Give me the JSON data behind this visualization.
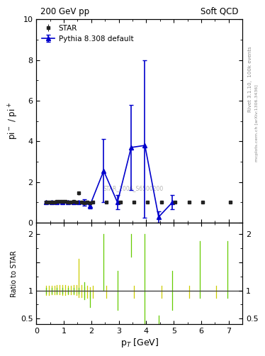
{
  "title_left": "200 GeV pp",
  "title_right": "Soft QCD",
  "ylabel_main": "pi$^-$ / pi$^+$",
  "ylabel_ratio": "Ratio to STAR",
  "xlabel": "p$_T$ [GeV]",
  "right_label_top": "Rivet 3.1.10,  100k events",
  "right_label_bot": "mcplots.cern.ch [arXiv:1306.3436]",
  "watermark": "STAR_2006_S6500200",
  "xlim": [
    0,
    7.5
  ],
  "ylim_main": [
    0,
    10
  ],
  "ylim_ratio": [
    0.4,
    2.2
  ],
  "star_x": [
    0.35,
    0.45,
    0.55,
    0.65,
    0.75,
    0.85,
    0.95,
    1.05,
    1.15,
    1.25,
    1.35,
    1.45,
    1.55,
    1.65,
    1.75,
    1.85,
    1.95,
    2.05,
    2.55,
    3.05,
    3.55,
    4.05,
    4.55,
    5.05,
    5.55,
    6.05,
    7.05
  ],
  "star_y": [
    1.01,
    1.01,
    1.02,
    1.02,
    1.04,
    1.05,
    1.03,
    1.03,
    1.02,
    1.02,
    1.03,
    1.02,
    1.45,
    1.0,
    0.97,
    1.0,
    0.97,
    1.0,
    1.0,
    1.0,
    1.0,
    1.02,
    1.0,
    1.0,
    1.0,
    1.0,
    1.0
  ],
  "star_yerr": [
    0.04,
    0.04,
    0.04,
    0.04,
    0.04,
    0.04,
    0.04,
    0.04,
    0.04,
    0.04,
    0.04,
    0.04,
    0.08,
    0.05,
    0.05,
    0.05,
    0.05,
    0.05,
    0.05,
    0.05,
    0.05,
    0.05,
    0.05,
    0.05,
    0.05,
    0.05,
    0.05
  ],
  "pythia_x": [
    0.35,
    0.55,
    0.75,
    0.95,
    1.15,
    1.35,
    1.55,
    1.75,
    1.95,
    2.45,
    2.95,
    3.45,
    3.95,
    4.45,
    4.95
  ],
  "pythia_y": [
    1.0,
    1.0,
    1.0,
    1.0,
    1.0,
    1.0,
    1.0,
    1.0,
    0.85,
    2.55,
    1.0,
    3.7,
    3.8,
    0.28,
    1.0
  ],
  "pythia_yerr_lo": [
    0.05,
    0.05,
    0.05,
    0.05,
    0.05,
    0.05,
    0.05,
    0.15,
    0.15,
    1.55,
    0.35,
    2.1,
    3.55,
    0.28,
    0.35
  ],
  "pythia_yerr_hi": [
    0.05,
    0.05,
    0.05,
    0.05,
    0.05,
    0.05,
    0.05,
    0.15,
    0.15,
    1.55,
    0.35,
    2.1,
    4.2,
    0.28,
    0.35
  ],
  "star_color": "#222222",
  "pythia_color": "#0000cc",
  "ratio_yellow_color": "#cccc00",
  "ratio_green_color": "#66cc00",
  "background_color": "#ffffff",
  "ratio_yellow_x": [
    0.35,
    0.45,
    0.55,
    0.65,
    0.75,
    0.85,
    0.95,
    1.05,
    1.15,
    1.25,
    1.35,
    1.45,
    1.55,
    1.65,
    1.75,
    1.85,
    1.95,
    2.05,
    2.55,
    3.55,
    4.55,
    5.55,
    6.55,
    7.55
  ],
  "ratio_yellow_lo": [
    0.92,
    0.92,
    0.93,
    0.93,
    0.93,
    0.93,
    0.92,
    0.92,
    0.93,
    0.93,
    0.93,
    0.92,
    0.88,
    0.88,
    0.88,
    0.87,
    0.87,
    0.87,
    0.87,
    0.87,
    0.87,
    0.87,
    0.87,
    0.87
  ],
  "ratio_yellow_hi": [
    1.08,
    1.08,
    1.08,
    1.08,
    1.1,
    1.1,
    1.09,
    1.09,
    1.08,
    1.08,
    1.09,
    1.09,
    1.56,
    1.1,
    1.06,
    1.08,
    1.06,
    1.08,
    1.08,
    1.08,
    1.08,
    1.08,
    1.08,
    1.08
  ],
  "ratio_green_x": [
    0.35,
    0.55,
    0.75,
    0.95,
    1.15,
    1.35,
    1.55,
    1.75,
    1.95,
    2.45,
    2.95,
    3.45,
    3.95,
    4.45,
    4.95,
    5.95,
    6.95,
    7.55
  ],
  "ratio_green_lo": [
    0.95,
    0.95,
    0.95,
    0.95,
    0.95,
    0.95,
    0.95,
    0.85,
    0.7,
    1.0,
    0.65,
    1.6,
    0.42,
    0.42,
    0.65,
    0.87,
    0.87,
    0.87
  ],
  "ratio_green_hi": [
    1.05,
    1.05,
    1.05,
    1.05,
    1.05,
    1.05,
    1.05,
    1.15,
    1.0,
    2.0,
    1.35,
    2.0,
    2.0,
    0.56,
    1.35,
    1.87,
    1.87,
    1.87
  ]
}
